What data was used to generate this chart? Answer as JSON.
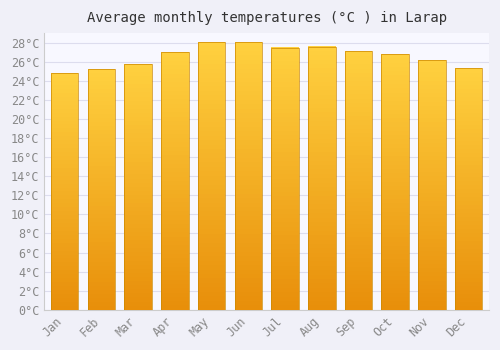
{
  "title": "Average monthly temperatures (°C ) in Larap",
  "months": [
    "Jan",
    "Feb",
    "Mar",
    "Apr",
    "May",
    "Jun",
    "Jul",
    "Aug",
    "Sep",
    "Oct",
    "Nov",
    "Dec"
  ],
  "values": [
    24.8,
    25.2,
    25.8,
    27.0,
    28.1,
    28.1,
    27.5,
    27.6,
    27.1,
    26.8,
    26.2,
    25.3
  ],
  "bar_color_center": "#FFD966",
  "bar_color_edge": "#E8900A",
  "background_color": "#F0F0F8",
  "plot_bg_color": "#F8F8FF",
  "grid_color": "#DDDDEE",
  "ylim": [
    0,
    29.0
  ],
  "ytick_step": 2,
  "title_fontsize": 10,
  "tick_fontsize": 8.5,
  "tick_color": "#888888",
  "bar_width": 0.75,
  "bar_edge_color": "#CC8800",
  "bar_edge_width": 0.5
}
